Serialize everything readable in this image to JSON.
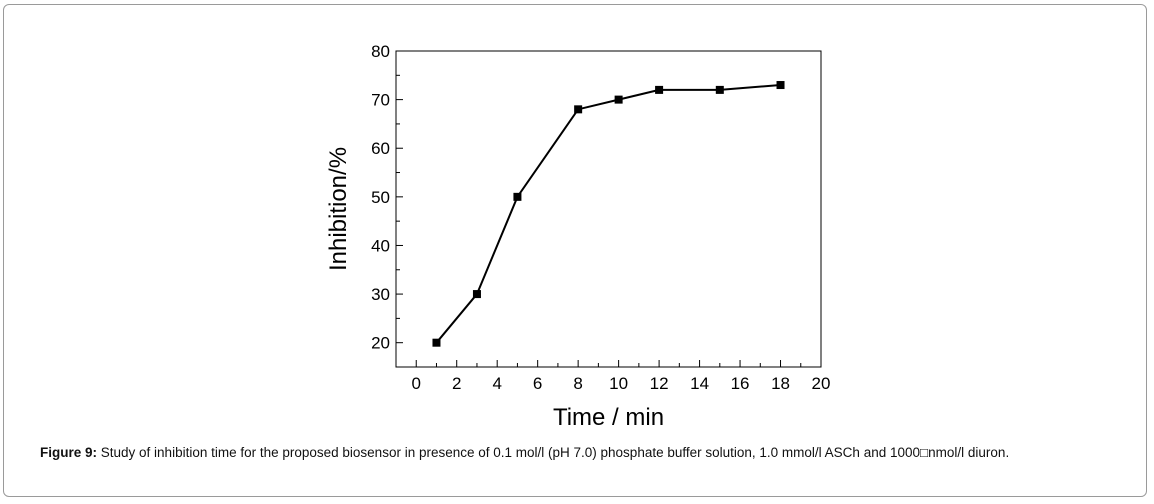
{
  "chart_data": {
    "type": "line",
    "x": [
      1,
      3,
      5,
      8,
      10,
      12,
      15,
      18
    ],
    "series": [
      {
        "values": [
          20,
          30,
          50,
          68,
          70,
          72,
          72,
          73
        ]
      }
    ],
    "xlabel": "Time / min",
    "ylabel": "Inhibition/%",
    "xlim": [
      -1,
      20
    ],
    "ylim": [
      15,
      80
    ],
    "xticks": [
      "0",
      "2",
      "4",
      "6",
      "8",
      "10",
      "12",
      "14",
      "16",
      "18",
      "20"
    ],
    "yticks": [
      "20",
      "30",
      "40",
      "50",
      "60",
      "70",
      "80"
    ],
    "grid": false,
    "marker": "square",
    "color": "#000000"
  },
  "caption": {
    "label": "Figure 9:",
    "text": " Study of inhibition time for the proposed biosensor in presence of 0.1 mol/l (pH 7.0) phosphate buffer solution, 1.0 mmol/l ASCh and 1000□nmol/l diuron."
  }
}
